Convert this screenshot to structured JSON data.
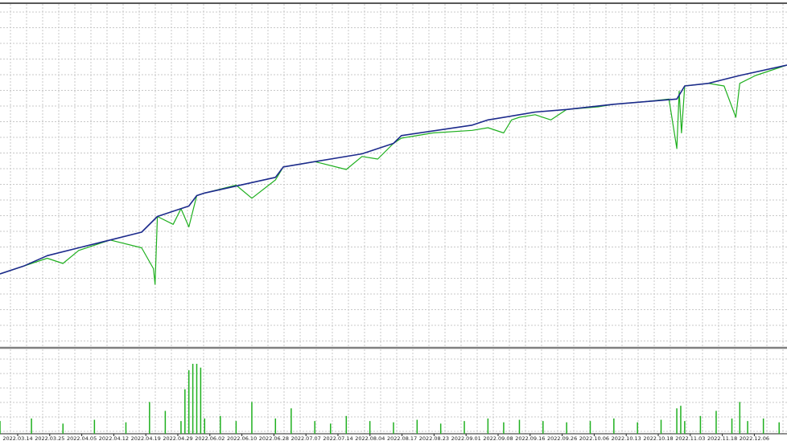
{
  "chart_data": {
    "type": "line",
    "title": "",
    "colors": {
      "balance": "#1c2a8c",
      "equity": "#1fb01f",
      "deposit_load": "#1fb01f",
      "grid": "#c8c8c8",
      "frame": "#000000",
      "separator": "#808080"
    },
    "grid": true,
    "x_tick_labels": [
      "2022.03.14",
      "2022.03.25",
      "2022.04.05",
      "2022.04.12",
      "2022.04.19",
      "2022.04.29",
      "2022.06.02",
      "2022.06.10",
      "2022.06.28",
      "2022.07.07",
      "2022.07.14",
      "2022.08.04",
      "2022.08.17",
      "2022.08.23",
      "2022.09.01",
      "2022.09.08",
      "2022.09.16",
      "2022.09.26",
      "2022.10.06",
      "2022.10.13",
      "2022.10.18",
      "2022.11.03",
      "2022.11.18",
      "2022.12.06"
    ],
    "y_range": [
      0,
      100
    ],
    "series": [
      {
        "key": "balance",
        "x": [
          0,
          3,
          6,
          10,
          14,
          18,
          20,
          24,
          25,
          26,
          35,
          36,
          46,
          50,
          51,
          60,
          62,
          66,
          68,
          72,
          78,
          86,
          87,
          90,
          94,
          100
        ],
        "values": [
          12,
          15,
          19,
          22,
          25,
          28,
          34,
          38,
          42,
          43,
          49,
          53,
          58,
          62,
          65,
          69,
          71,
          73,
          74,
          75,
          77,
          79,
          84,
          85,
          88,
          92
        ]
      },
      {
        "key": "equity",
        "x": [
          0,
          3,
          6,
          8,
          10,
          14,
          18,
          19.5,
          19.7,
          20,
          22,
          23,
          24,
          25,
          26,
          30,
          32,
          35,
          36,
          40,
          44,
          46,
          48,
          50,
          51,
          55,
          60,
          62,
          64,
          65,
          66,
          68,
          70,
          72,
          76,
          78,
          82,
          85,
          86,
          86.3,
          86.6,
          87,
          90,
          92,
          93.5,
          94,
          96,
          98,
          100
        ],
        "values": [
          12,
          15,
          18,
          16,
          21,
          25,
          22,
          14,
          8,
          34,
          31,
          37,
          30,
          42,
          43,
          46,
          41,
          48,
          53,
          55,
          52,
          57,
          56,
          62,
          64,
          66,
          67,
          68,
          66,
          71,
          72,
          73,
          71,
          75,
          76,
          77,
          78,
          79,
          60,
          82,
          66,
          84,
          85,
          84,
          72,
          85,
          88,
          90,
          92
        ]
      }
    ],
    "deposit_load": {
      "x": [
        0,
        4,
        8,
        12,
        16,
        19,
        21,
        23,
        23.5,
        24,
        24.5,
        25,
        25.5,
        26,
        28,
        30,
        32,
        35,
        37,
        40,
        42,
        44,
        47,
        50,
        53,
        56,
        59,
        62,
        64,
        66,
        69,
        72,
        75,
        78,
        81,
        84,
        86,
        86.5,
        87,
        89,
        91,
        93,
        94,
        95,
        97,
        99
      ],
      "values": [
        10,
        12,
        8,
        11,
        9,
        25,
        18,
        10,
        35,
        50,
        55,
        55,
        52,
        12,
        14,
        10,
        25,
        12,
        20,
        10,
        8,
        14,
        10,
        9,
        11,
        8,
        10,
        12,
        9,
        11,
        10,
        9,
        10,
        12,
        9,
        11,
        20,
        22,
        10,
        14,
        18,
        12,
        25,
        10,
        12,
        9
      ]
    }
  }
}
